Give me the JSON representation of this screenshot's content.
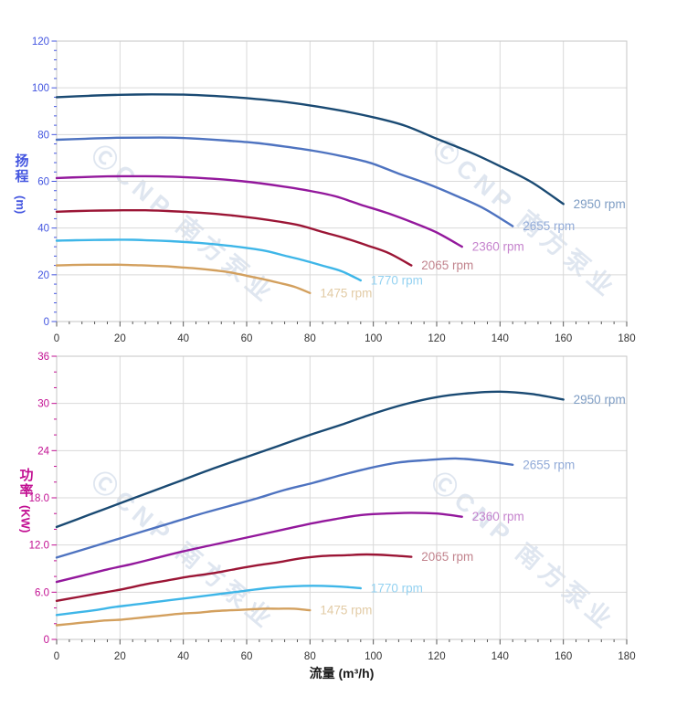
{
  "watermark": {
    "text": "ⒸCNP 南方泵业",
    "color": "#c6d3e4"
  },
  "chart_data": {
    "type": "line",
    "x_axis": {
      "title": "流量 (m³/h)",
      "min": 0,
      "max": 180,
      "major_step": 20,
      "minor_step": 4,
      "tick_labels": [
        "0",
        "20",
        "40",
        "60",
        "80",
        "100",
        "120",
        "140",
        "160",
        "180"
      ],
      "label_color": "#333333",
      "tick_color": "#555555"
    },
    "grid": {
      "line_color": "#d9d9d9",
      "border_color": "#c6c6c6"
    },
    "charts": [
      {
        "id": "head",
        "y_axis": {
          "title_cjk": "扬程",
          "title_unit": "(m)",
          "color": "#4355e0",
          "min": 0,
          "max": 120,
          "major_step": 20,
          "minor_step": 4,
          "tick_labels": [
            "0",
            "20",
            "40",
            "60",
            "80",
            "100",
            "120"
          ]
        },
        "series": [
          {
            "name": "2950 rpm",
            "curve_color": "#1a4a73",
            "label_color": "#7d9cc3",
            "x": [
              0,
              10,
              20,
              30,
              40,
              50,
              60,
              70,
              80,
              90,
              100,
              110,
              120,
              130,
              140,
              150,
              160
            ],
            "y": [
              96,
              96.6,
              97,
              97.2,
              97.1,
              96.5,
              95.6,
              94.3,
              92.5,
              90.2,
              87.4,
              83.8,
              78.2,
              72.8,
              66.5,
              59.6,
              50.3
            ]
          },
          {
            "name": "2655 rpm",
            "curve_color": "#4e73c0",
            "label_color": "#92abd8",
            "x": [
              0,
              9,
              18,
              27,
              36,
              45,
              54,
              63,
              72,
              81,
              90,
              99,
              108,
              117,
              126,
              135,
              144
            ],
            "y": [
              77.8,
              78.2,
              78.6,
              78.7,
              78.7,
              78.2,
              77.4,
              76.4,
              74.9,
              73.1,
              70.8,
              67.9,
              63.3,
              59,
              53.9,
              48.3,
              40.8
            ]
          },
          {
            "name": "2360 rpm",
            "curve_color": "#93189c",
            "label_color": "#c583cd",
            "x": [
              0,
              8,
              16,
              24,
              32,
              40,
              48,
              56,
              64,
              72,
              80,
              88,
              96,
              104,
              112,
              120,
              128
            ],
            "y": [
              61.4,
              61.8,
              62.1,
              62.2,
              62.1,
              61.8,
              61.2,
              60.4,
              59.2,
              57.7,
              55.9,
              53.6,
              50,
              46.6,
              42.6,
              38.1,
              32
            ]
          },
          {
            "name": "2065 rpm",
            "curve_color": "#9b1535",
            "label_color": "#c2848e",
            "x": [
              0,
              7,
              14,
              21,
              28,
              35,
              42,
              49,
              56,
              63,
              70,
              77,
              84,
              91,
              98,
              105,
              112
            ],
            "y": [
              47,
              47.3,
              47.5,
              47.6,
              47.6,
              47.3,
              46.8,
              46.2,
              45.3,
              44.2,
              42.8,
              41.1,
              38.3,
              35.7,
              32.6,
              29.2,
              24
            ]
          },
          {
            "name": "1770 rpm",
            "curve_color": "#3eb6e8",
            "label_color": "#94d2f1",
            "x": [
              0,
              6,
              12,
              18,
              24,
              30,
              36,
              42,
              48,
              54,
              60,
              66,
              72,
              78,
              84,
              90,
              96
            ],
            "y": [
              34.6,
              34.8,
              34.9,
              35,
              35,
              34.7,
              34.4,
              33.9,
              33.3,
              32.5,
              31.5,
              30.2,
              28.2,
              26.2,
              23.9,
              21.5,
              17.6
            ]
          },
          {
            "name": "1475 rpm",
            "curve_color": "#d3a05e",
            "label_color": "#e2cba5",
            "x": [
              0,
              5,
              10,
              15,
              20,
              25,
              30,
              35,
              40,
              45,
              50,
              55,
              60,
              65,
              70,
              75,
              80
            ],
            "y": [
              24,
              24.2,
              24.3,
              24.3,
              24.3,
              24.1,
              23.9,
              23.6,
              23.1,
              22.6,
              21.9,
              21,
              19.6,
              18.2,
              16.6,
              14.9,
              12.2
            ]
          }
        ]
      },
      {
        "id": "power",
        "y_axis": {
          "title_cjk": "功率",
          "title_unit": "(KW)",
          "color": "#c20f92",
          "min": 0,
          "max": 36,
          "major_step": 6,
          "minor_step": 2,
          "tick_labels": [
            "0",
            "6.0",
            "12.0",
            "18.0",
            "24",
            "30",
            "36"
          ]
        },
        "series": [
          {
            "name": "2950 rpm",
            "curve_color": "#1a4a73",
            "label_color": "#7d9cc3",
            "x": [
              0,
              10,
              20,
              30,
              40,
              50,
              60,
              70,
              80,
              90,
              100,
              110,
              120,
              130,
              140,
              150,
              160
            ],
            "y": [
              14.3,
              15.8,
              17.3,
              18.8,
              20.3,
              21.8,
              23.2,
              24.6,
              26,
              27.3,
              28.7,
              29.9,
              30.8,
              31.3,
              31.5,
              31.2,
              30.5
            ]
          },
          {
            "name": "2655 rpm",
            "curve_color": "#4e73c0",
            "label_color": "#92abd8",
            "x": [
              0,
              9,
              18,
              27,
              36,
              45,
              54,
              63,
              72,
              81,
              90,
              99,
              108,
              117,
              126,
              135,
              144
            ],
            "y": [
              10.4,
              11.5,
              12.6,
              13.7,
              14.8,
              15.9,
              16.9,
              17.9,
              19,
              19.9,
              20.9,
              21.8,
              22.5,
              22.8,
              23,
              22.7,
              22.2
            ]
          },
          {
            "name": "2360 rpm",
            "curve_color": "#93189c",
            "label_color": "#c583cd",
            "x": [
              0,
              8,
              16,
              24,
              32,
              40,
              48,
              56,
              64,
              72,
              80,
              88,
              96,
              104,
              112,
              120,
              128
            ],
            "y": [
              7.3,
              8.1,
              8.9,
              9.6,
              10.4,
              11.2,
              11.9,
              12.6,
              13.3,
              14,
              14.7,
              15.3,
              15.8,
              16,
              16.1,
              16,
              15.6
            ]
          },
          {
            "name": "2065 rpm",
            "curve_color": "#9b1535",
            "label_color": "#c2848e",
            "x": [
              0,
              7,
              14,
              21,
              28,
              35,
              42,
              49,
              56,
              63,
              70,
              77,
              84,
              91,
              98,
              105,
              112
            ],
            "y": [
              4.9,
              5.4,
              5.9,
              6.4,
              7,
              7.5,
              8,
              8.4,
              8.9,
              9.4,
              9.8,
              10.3,
              10.6,
              10.7,
              10.8,
              10.7,
              10.5
            ]
          },
          {
            "name": "1770 rpm",
            "curve_color": "#3eb6e8",
            "label_color": "#94d2f1",
            "x": [
              0,
              6,
              12,
              18,
              24,
              30,
              36,
              42,
              48,
              54,
              60,
              66,
              72,
              78,
              84,
              90,
              96
            ],
            "y": [
              3.1,
              3.4,
              3.7,
              4.1,
              4.4,
              4.7,
              5,
              5.3,
              5.6,
              5.9,
              6.2,
              6.5,
              6.7,
              6.8,
              6.8,
              6.7,
              6.5
            ]
          },
          {
            "name": "1475 rpm",
            "curve_color": "#d3a05e",
            "label_color": "#e2cba5",
            "x": [
              0,
              5,
              10,
              15,
              20,
              25,
              30,
              35,
              40,
              45,
              50,
              55,
              60,
              65,
              70,
              75,
              80
            ],
            "y": [
              1.8,
              2,
              2.2,
              2.4,
              2.5,
              2.7,
              2.9,
              3.1,
              3.3,
              3.4,
              3.6,
              3.7,
              3.8,
              3.9,
              3.9,
              3.9,
              3.7
            ]
          }
        ]
      }
    ]
  }
}
